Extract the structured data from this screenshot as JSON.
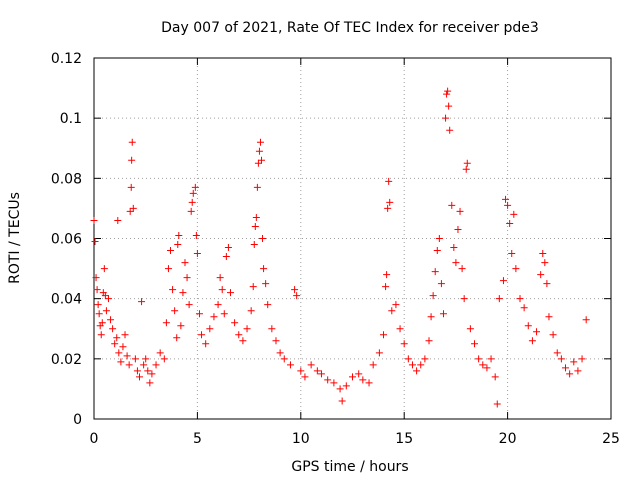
{
  "chart_data": {
    "type": "scatter",
    "title": "Day 007 of 2021, Rate Of TEC Index for receiver pde3",
    "xlabel": "GPS time / hours",
    "ylabel": "ROTI / TECUs",
    "xlim": [
      0,
      25
    ],
    "ylim": [
      0,
      0.12
    ],
    "x_ticks": [
      0,
      5,
      10,
      15,
      20,
      25
    ],
    "y_ticks": [
      0,
      0.02,
      0.04,
      0.06,
      0.08,
      0.1,
      0.12
    ],
    "x_tick_labels": [
      "0",
      "5",
      "10",
      "15",
      "20",
      "25"
    ],
    "y_tick_labels": [
      "0",
      "0.02",
      "0.04",
      "0.06",
      "0.08",
      "0.1",
      "0.12"
    ],
    "grid": true,
    "marker": "+",
    "color": "#ff0000",
    "series": [
      {
        "points": [
          [
            0.0,
            0.066
          ],
          [
            0.05,
            0.059
          ],
          [
            0.1,
            0.047
          ],
          [
            0.15,
            0.043
          ],
          [
            0.2,
            0.038
          ],
          [
            0.25,
            0.035
          ],
          [
            0.3,
            0.031
          ],
          [
            0.35,
            0.028
          ],
          [
            0.4,
            0.032
          ],
          [
            0.45,
            0.042
          ],
          [
            0.5,
            0.05
          ],
          [
            0.55,
            0.041
          ],
          [
            0.6,
            0.036
          ],
          [
            0.7,
            0.04
          ],
          [
            0.8,
            0.033
          ],
          [
            0.9,
            0.03
          ],
          [
            1.0,
            0.025
          ],
          [
            1.1,
            0.027
          ],
          [
            1.15,
            0.066
          ],
          [
            1.2,
            0.022
          ],
          [
            1.3,
            0.019
          ],
          [
            1.4,
            0.024
          ],
          [
            1.5,
            0.028
          ],
          [
            1.6,
            0.021
          ],
          [
            1.7,
            0.018
          ],
          [
            1.75,
            0.069
          ],
          [
            1.8,
            0.077
          ],
          [
            1.82,
            0.086
          ],
          [
            1.85,
            0.092
          ],
          [
            1.9,
            0.07
          ],
          [
            2.0,
            0.02
          ],
          [
            2.1,
            0.016
          ],
          [
            2.2,
            0.014
          ],
          [
            2.3,
            0.039
          ],
          [
            2.4,
            0.018
          ],
          [
            2.5,
            0.02
          ],
          [
            2.6,
            0.016
          ],
          [
            2.7,
            0.012
          ],
          [
            2.8,
            0.015
          ],
          [
            3.0,
            0.018
          ],
          [
            3.2,
            0.022
          ],
          [
            3.4,
            0.02
          ],
          [
            3.5,
            0.032
          ],
          [
            3.6,
            0.05
          ],
          [
            3.7,
            0.056
          ],
          [
            3.8,
            0.043
          ],
          [
            3.9,
            0.036
          ],
          [
            4.0,
            0.027
          ],
          [
            4.05,
            0.058
          ],
          [
            4.1,
            0.061
          ],
          [
            4.2,
            0.031
          ],
          [
            4.3,
            0.042
          ],
          [
            4.4,
            0.052
          ],
          [
            4.5,
            0.047
          ],
          [
            4.6,
            0.038
          ],
          [
            4.7,
            0.069
          ],
          [
            4.75,
            0.072
          ],
          [
            4.8,
            0.075
          ],
          [
            4.9,
            0.077
          ],
          [
            4.95,
            0.061
          ],
          [
            5.0,
            0.055
          ],
          [
            5.1,
            0.035
          ],
          [
            5.2,
            0.028
          ],
          [
            5.4,
            0.025
          ],
          [
            5.6,
            0.03
          ],
          [
            5.8,
            0.034
          ],
          [
            6.0,
            0.038
          ],
          [
            6.1,
            0.047
          ],
          [
            6.2,
            0.043
          ],
          [
            6.3,
            0.035
          ],
          [
            6.4,
            0.054
          ],
          [
            6.5,
            0.057
          ],
          [
            6.6,
            0.042
          ],
          [
            6.8,
            0.032
          ],
          [
            7.0,
            0.028
          ],
          [
            7.2,
            0.026
          ],
          [
            7.4,
            0.03
          ],
          [
            7.6,
            0.036
          ],
          [
            7.7,
            0.044
          ],
          [
            7.75,
            0.058
          ],
          [
            7.8,
            0.064
          ],
          [
            7.85,
            0.067
          ],
          [
            7.9,
            0.077
          ],
          [
            7.95,
            0.085
          ],
          [
            8.0,
            0.089
          ],
          [
            8.05,
            0.092
          ],
          [
            8.1,
            0.086
          ],
          [
            8.15,
            0.06
          ],
          [
            8.2,
            0.05
          ],
          [
            8.3,
            0.045
          ],
          [
            8.4,
            0.038
          ],
          [
            8.6,
            0.03
          ],
          [
            8.8,
            0.026
          ],
          [
            9.0,
            0.022
          ],
          [
            9.2,
            0.02
          ],
          [
            9.5,
            0.018
          ],
          [
            9.7,
            0.043
          ],
          [
            9.8,
            0.041
          ],
          [
            10.0,
            0.016
          ],
          [
            10.2,
            0.014
          ],
          [
            10.5,
            0.018
          ],
          [
            10.8,
            0.016
          ],
          [
            11.0,
            0.015
          ],
          [
            11.3,
            0.013
          ],
          [
            11.6,
            0.012
          ],
          [
            11.9,
            0.01
          ],
          [
            12.0,
            0.006
          ],
          [
            12.2,
            0.011
          ],
          [
            12.5,
            0.014
          ],
          [
            12.8,
            0.015
          ],
          [
            13.0,
            0.013
          ],
          [
            13.3,
            0.012
          ],
          [
            13.5,
            0.018
          ],
          [
            13.8,
            0.022
          ],
          [
            14.0,
            0.028
          ],
          [
            14.1,
            0.044
          ],
          [
            14.15,
            0.048
          ],
          [
            14.2,
            0.07
          ],
          [
            14.25,
            0.079
          ],
          [
            14.3,
            0.072
          ],
          [
            14.4,
            0.036
          ],
          [
            14.6,
            0.038
          ],
          [
            14.8,
            0.03
          ],
          [
            15.0,
            0.025
          ],
          [
            15.2,
            0.02
          ],
          [
            15.4,
            0.018
          ],
          [
            15.6,
            0.016
          ],
          [
            15.8,
            0.018
          ],
          [
            16.0,
            0.02
          ],
          [
            16.2,
            0.026
          ],
          [
            16.3,
            0.034
          ],
          [
            16.4,
            0.041
          ],
          [
            16.5,
            0.049
          ],
          [
            16.6,
            0.056
          ],
          [
            16.7,
            0.06
          ],
          [
            16.8,
            0.045
          ],
          [
            16.9,
            0.035
          ],
          [
            17.0,
            0.1
          ],
          [
            17.05,
            0.108
          ],
          [
            17.1,
            0.109
          ],
          [
            17.15,
            0.104
          ],
          [
            17.2,
            0.096
          ],
          [
            17.3,
            0.071
          ],
          [
            17.4,
            0.057
          ],
          [
            17.5,
            0.052
          ],
          [
            17.6,
            0.063
          ],
          [
            17.7,
            0.069
          ],
          [
            17.8,
            0.05
          ],
          [
            17.9,
            0.04
          ],
          [
            18.0,
            0.083
          ],
          [
            18.05,
            0.085
          ],
          [
            18.2,
            0.03
          ],
          [
            18.4,
            0.025
          ],
          [
            18.6,
            0.02
          ],
          [
            18.8,
            0.018
          ],
          [
            19.0,
            0.017
          ],
          [
            19.2,
            0.02
          ],
          [
            19.4,
            0.014
          ],
          [
            19.5,
            0.005
          ],
          [
            19.6,
            0.04
          ],
          [
            19.8,
            0.046
          ],
          [
            19.9,
            0.073
          ],
          [
            20.0,
            0.071
          ],
          [
            20.1,
            0.065
          ],
          [
            20.2,
            0.055
          ],
          [
            20.3,
            0.068
          ],
          [
            20.4,
            0.05
          ],
          [
            20.6,
            0.04
          ],
          [
            20.8,
            0.037
          ],
          [
            21.0,
            0.031
          ],
          [
            21.2,
            0.026
          ],
          [
            21.4,
            0.029
          ],
          [
            21.6,
            0.048
          ],
          [
            21.7,
            0.055
          ],
          [
            21.8,
            0.052
          ],
          [
            21.9,
            0.045
          ],
          [
            22.0,
            0.034
          ],
          [
            22.2,
            0.028
          ],
          [
            22.4,
            0.022
          ],
          [
            22.6,
            0.02
          ],
          [
            22.8,
            0.017
          ],
          [
            23.0,
            0.015
          ],
          [
            23.2,
            0.019
          ],
          [
            23.4,
            0.016
          ],
          [
            23.6,
            0.02
          ],
          [
            23.8,
            0.033
          ]
        ]
      }
    ]
  }
}
